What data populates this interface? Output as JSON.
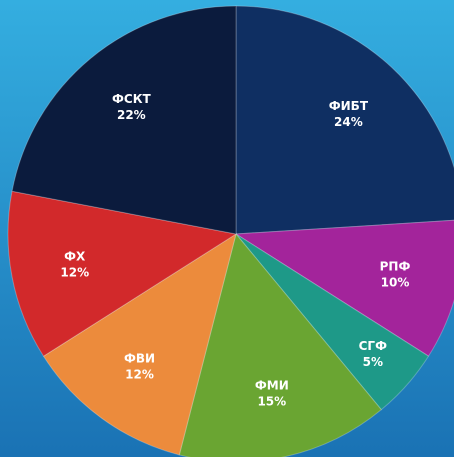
{
  "chart_data": {
    "type": "pie",
    "categories": [
      "ФИБТ",
      "РПФ",
      "СГФ",
      "ФМИ",
      "ФВИ",
      "ФХ",
      "ФСКТ"
    ],
    "values": [
      24,
      10,
      5,
      15,
      12,
      12,
      22
    ],
    "value_labels": [
      "24%",
      "10%",
      "5%",
      "15%",
      "12%",
      "12%",
      "22%"
    ],
    "colors": [
      "#0f2f62",
      "#a3249b",
      "#1e9988",
      "#6aa532",
      "#ec8b3c",
      "#d2292b",
      "#0b1b3d"
    ]
  }
}
